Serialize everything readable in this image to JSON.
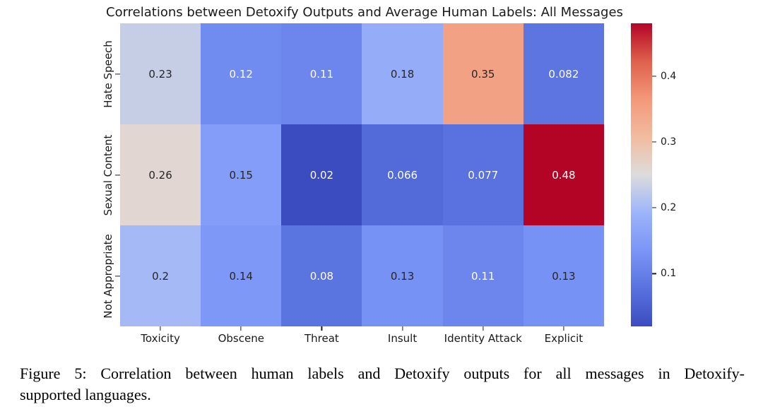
{
  "figure": {
    "title": "Correlations between Detoxify Outputs and Average Human Labels: All Messages"
  },
  "chart_data": {
    "type": "heatmap",
    "title": "Correlations between Detoxify Outputs and Average Human Labels: All Messages",
    "rows": [
      "Hate Speech",
      "Sexual Content",
      "Not Appropriate"
    ],
    "columns": [
      "Toxicity",
      "Obscene",
      "Threat",
      "Insult",
      "Identity Attack",
      "Explicit"
    ],
    "values": [
      [
        0.23,
        0.12,
        0.11,
        0.18,
        0.35,
        0.082
      ],
      [
        0.26,
        0.15,
        0.02,
        0.066,
        0.077,
        0.48
      ],
      [
        0.2,
        0.14,
        0.08,
        0.13,
        0.11,
        0.13
      ]
    ],
    "cell_labels": [
      [
        "0.23",
        "0.12",
        "0.11",
        "0.18",
        "0.35",
        "0.082"
      ],
      [
        "0.26",
        "0.15",
        "0.02",
        "0.066",
        "0.077",
        "0.48"
      ],
      [
        "0.2",
        "0.14",
        "0.08",
        "0.13",
        "0.11",
        "0.13"
      ]
    ],
    "colormap": "coolwarm",
    "vmin": 0.02,
    "vmax": 0.48,
    "colorbar_ticks": [
      0.4,
      0.3,
      0.2,
      0.1
    ],
    "colorbar_tick_labels": [
      "0.4",
      "0.3",
      "0.2",
      "0.1"
    ],
    "legend_position": "right",
    "grid": false,
    "accent_colors": {
      "cold_end": "#3B4CC0",
      "warm_end": "#B40426",
      "midpoint": "#DDDCDC"
    }
  },
  "caption": {
    "lines": [
      "Figure 5: Correlation between human labels and Detoxify outputs for all messages in Detoxify-",
      "supported languages."
    ],
    "full_text": "Figure 5: Correlation between human labels and Detoxify outputs for all messages in Detoxify-supported languages."
  }
}
